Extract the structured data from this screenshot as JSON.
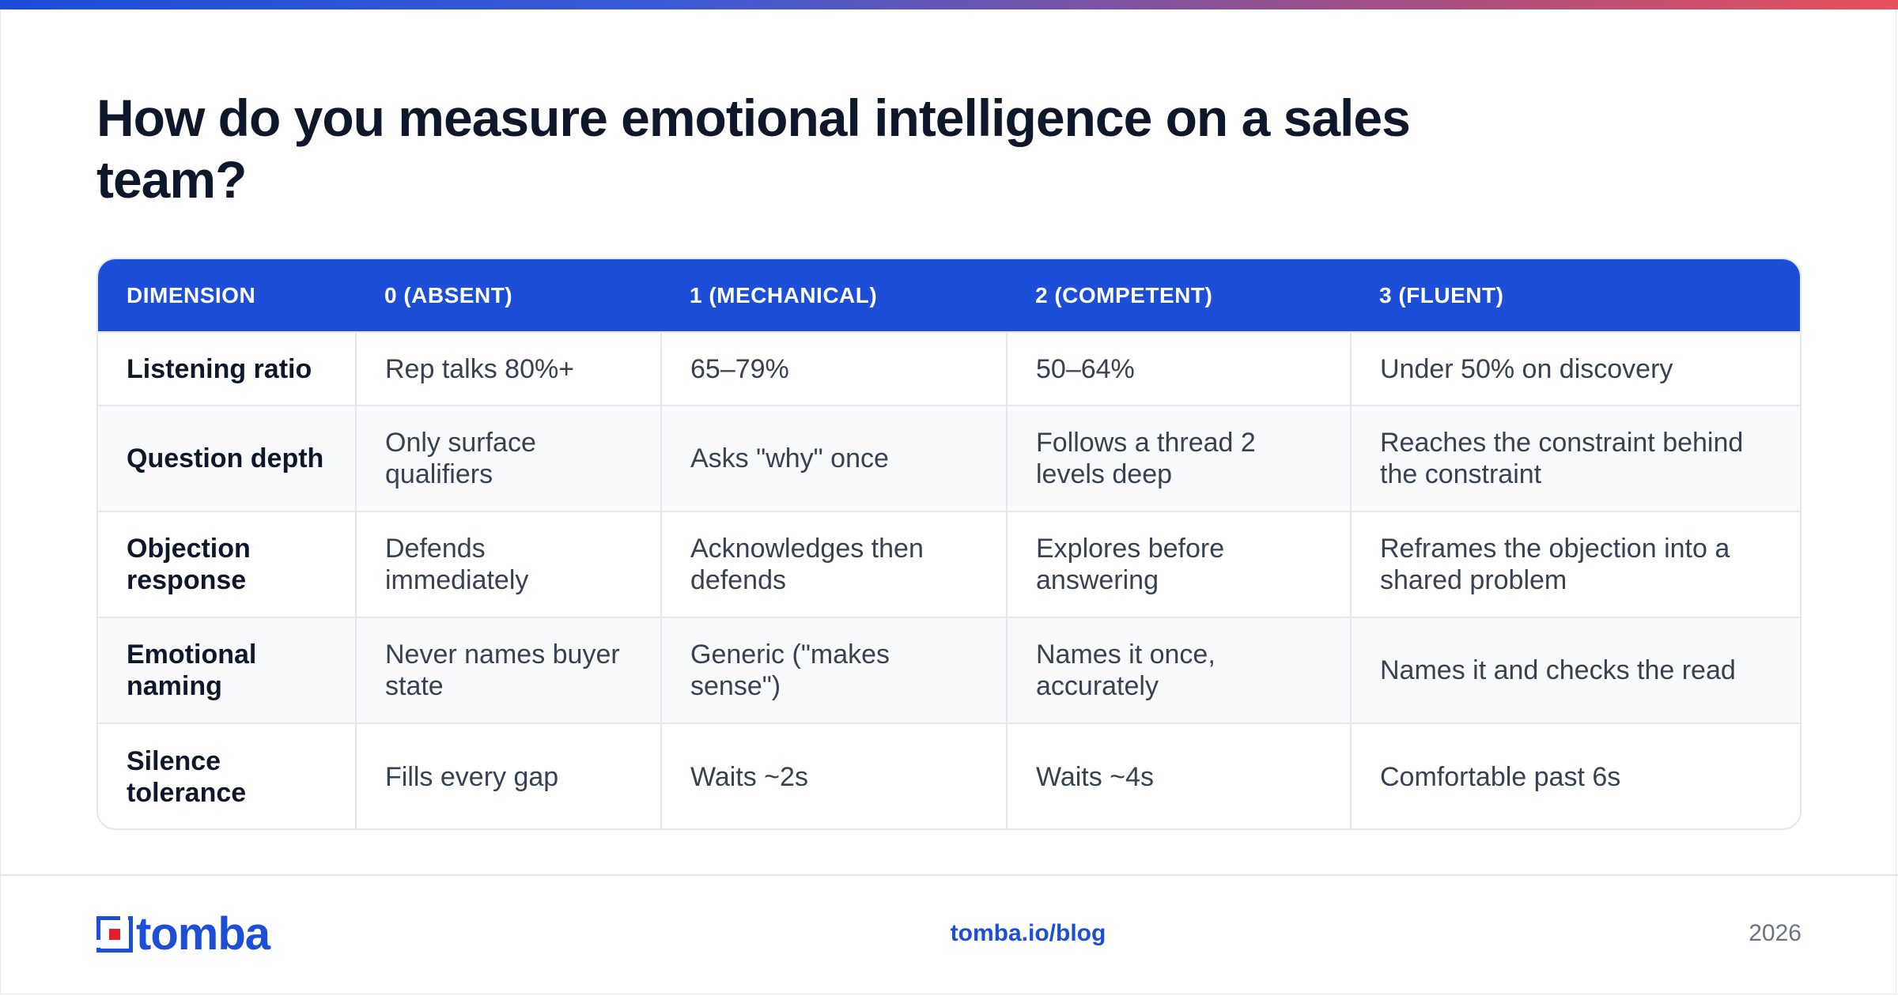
{
  "title": "How do you measure emotional intelligence on a sales team?",
  "table": {
    "headers": [
      "DIMENSION",
      "0 (ABSENT)",
      "1 (MECHANICAL)",
      "2 (COMPETENT)",
      "3 (FLUENT)"
    ],
    "rows": [
      [
        "Listening ratio",
        "Rep talks 80%+",
        "65–79%",
        "50–64%",
        "Under 50% on discovery"
      ],
      [
        "Question depth",
        "Only surface qualifiers",
        "Asks \"why\" once",
        "Follows a thread 2 levels deep",
        "Reaches the constraint behind the constraint"
      ],
      [
        "Objection response",
        "Defends immediately",
        "Acknowledges then defends",
        "Explores before answering",
        "Reframes the objection into a shared problem"
      ],
      [
        "Emotional naming",
        "Never names buyer state",
        "Generic (\"makes sense\")",
        "Names it once, accurately",
        "Names it and checks the read"
      ],
      [
        "Silence tolerance",
        "Fills every gap",
        "Waits ~2s",
        "Waits ~4s",
        "Comfortable past 6s"
      ]
    ]
  },
  "footer": {
    "logo_text": "tomba",
    "link": "tomba.io/blog",
    "year": "2026"
  },
  "colors": {
    "accent": "#1d4ed8",
    "gradient_end": "#e8505b",
    "logo_red": "#e11d2e",
    "title": "#0f172a"
  },
  "icons": {
    "logo": "tomba-logo-mark"
  }
}
